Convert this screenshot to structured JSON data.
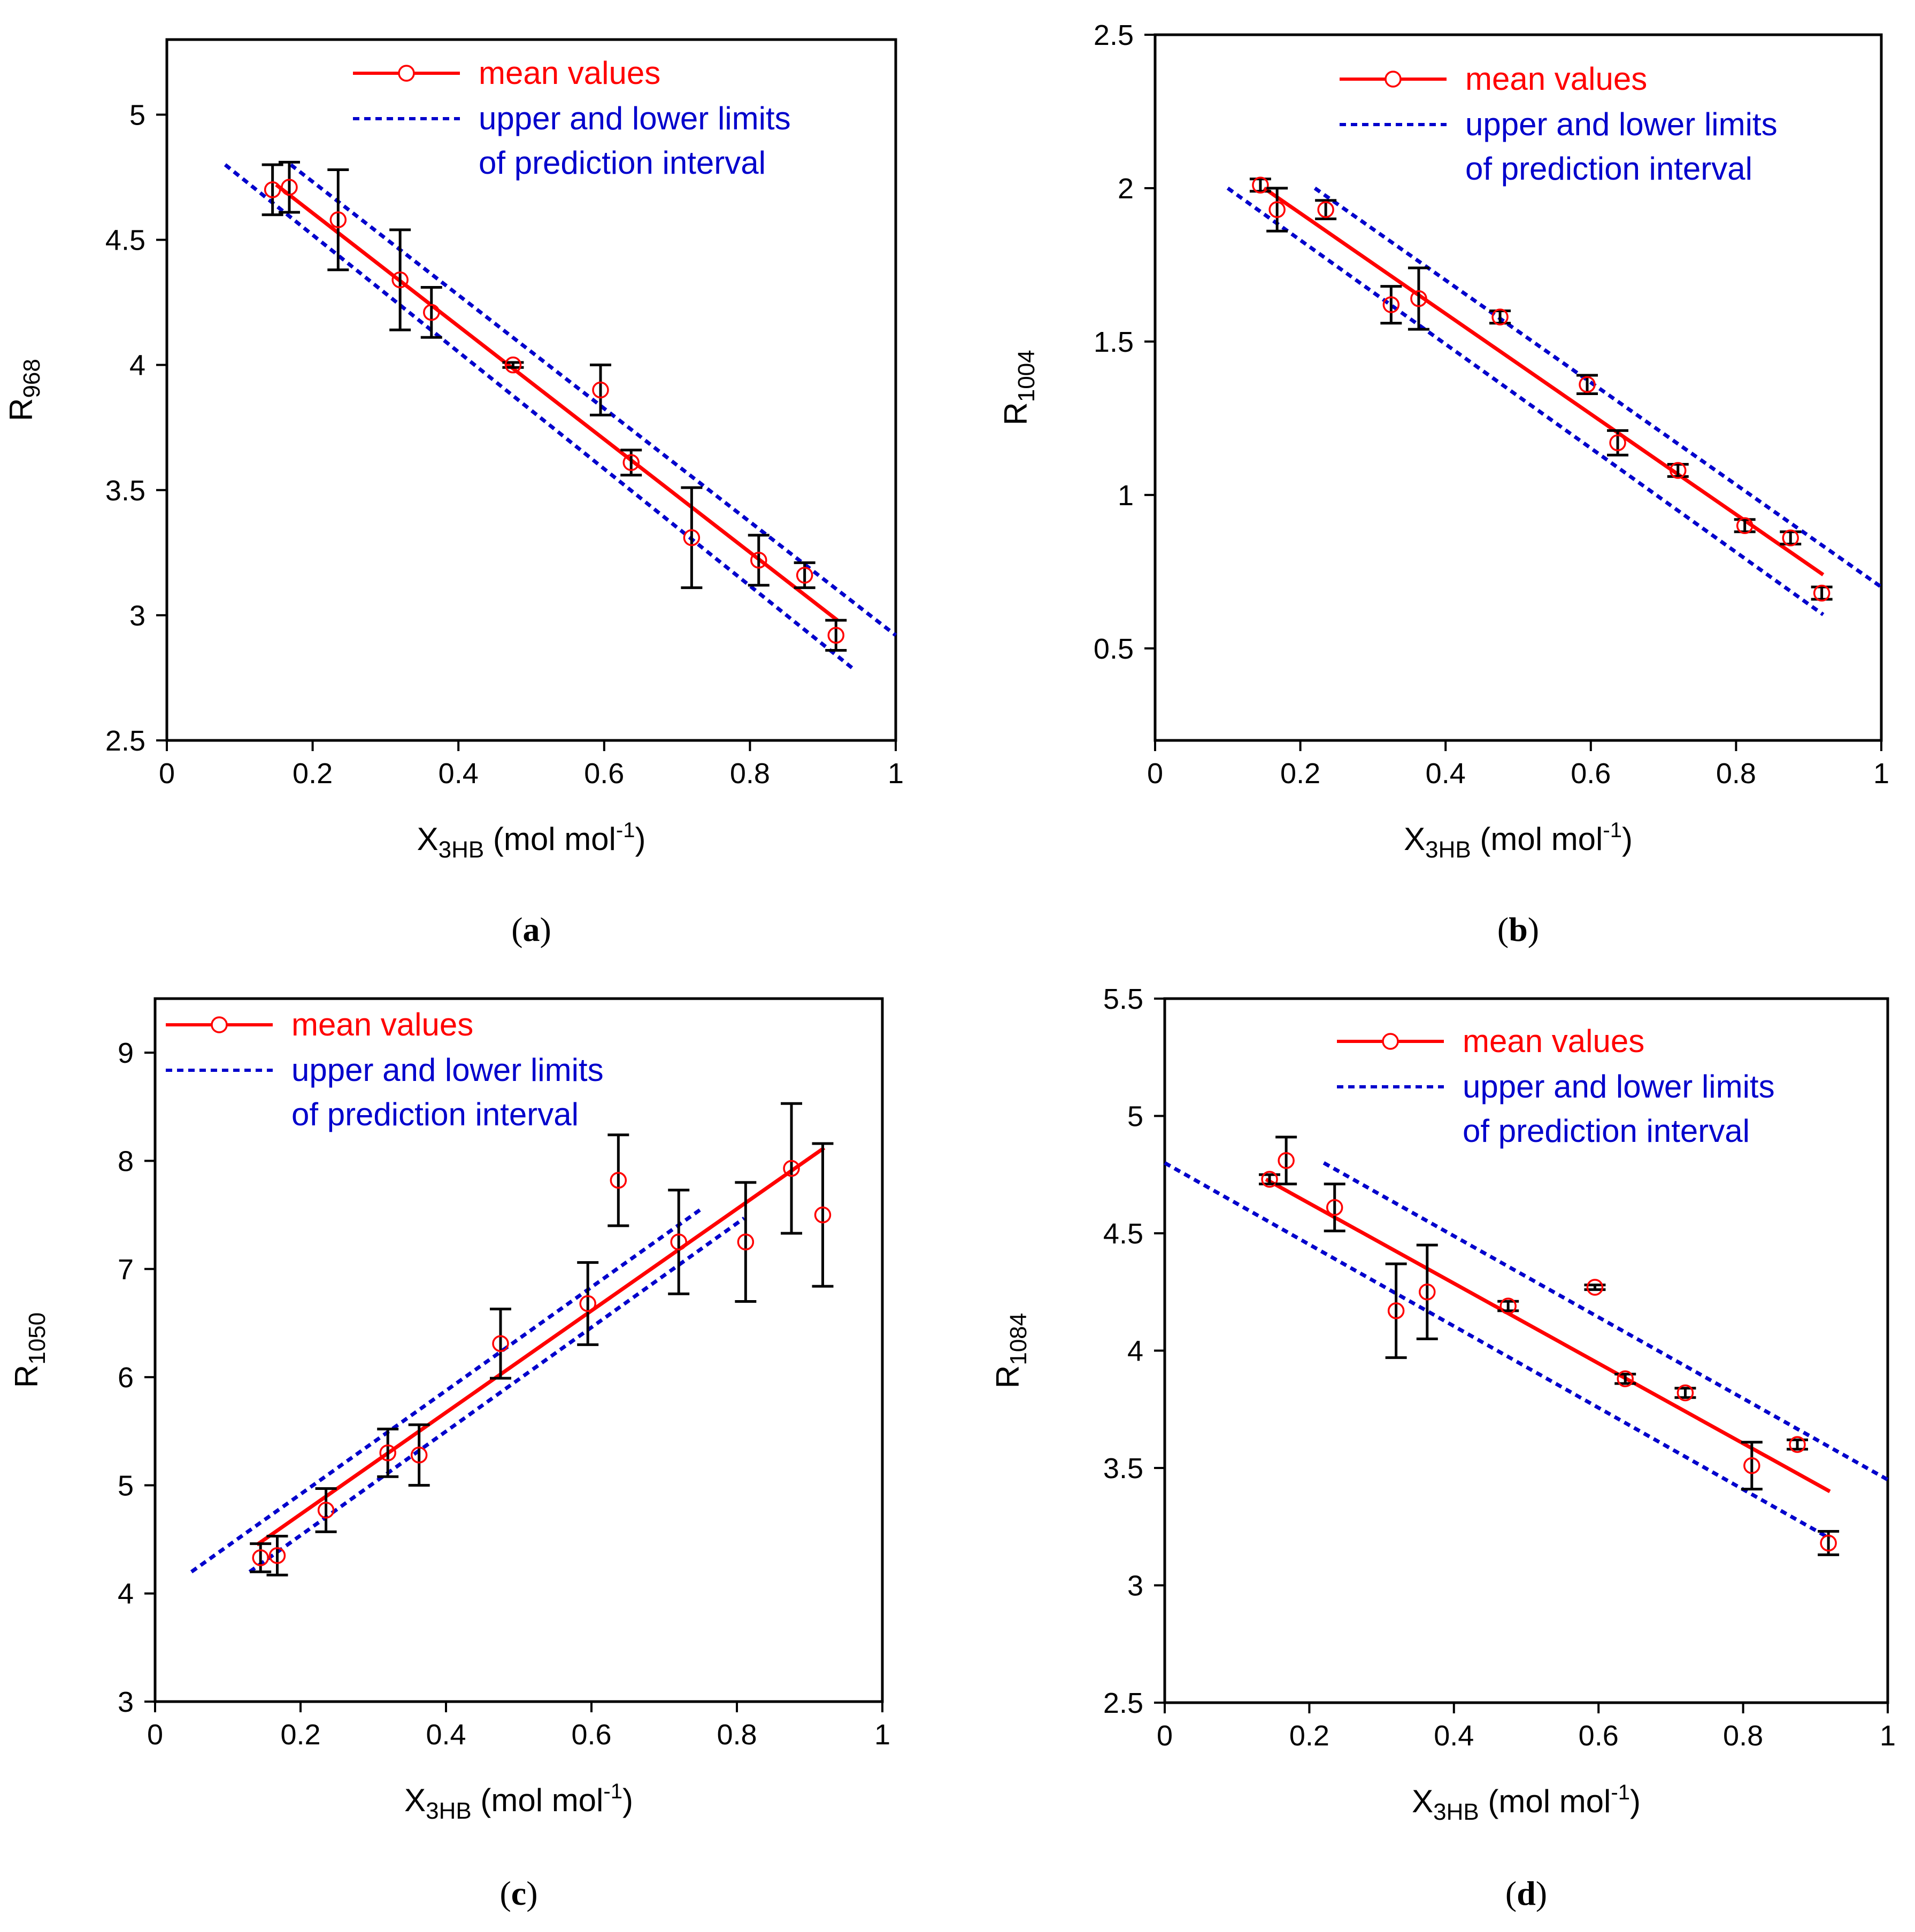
{
  "legend": {
    "mean": "mean values",
    "limits_line1": "upper and lower limits",
    "limits_line2": "of prediction interval"
  },
  "colors": {
    "mean": "#ff0000",
    "limits": "#0000cc",
    "errorbar": "#000000",
    "axes": "#000000"
  },
  "chart_data": [
    {
      "id": "a",
      "type": "scatter",
      "caption": "a",
      "title": "",
      "xlabel_main": "X",
      "xlabel_sub": "3HB",
      "xlabel_unit": " (mol mol",
      "xlabel_sup": "-1",
      "xlabel_close": ")",
      "ylabel_main": "R",
      "ylabel_sub": "968",
      "xlim": [
        0,
        1
      ],
      "ylim": [
        2.5,
        5.3
      ],
      "xticks": [
        0,
        0.2,
        0.4,
        0.6,
        0.8,
        1
      ],
      "xtick_labels": [
        "0",
        "0.2",
        "0.4",
        "0.6",
        "0.8",
        "1"
      ],
      "yticks": [
        2.5,
        3,
        3.5,
        4,
        4.5,
        5
      ],
      "ytick_labels": [
        "2.5",
        "3",
        "3.5",
        "4",
        "4.5",
        "5"
      ],
      "x": [
        0.145,
        0.168,
        0.235,
        0.32,
        0.363,
        0.475,
        0.595,
        0.637,
        0.72,
        0.812,
        0.875,
        0.918
      ],
      "y": [
        4.7,
        4.71,
        4.58,
        4.34,
        4.21,
        4.0,
        3.9,
        3.61,
        3.31,
        3.22,
        3.16,
        2.92
      ],
      "err": [
        0.1,
        0.1,
        0.2,
        0.2,
        0.1,
        0.01,
        0.1,
        0.05,
        0.2,
        0.1,
        0.05,
        0.06
      ],
      "fit": [
        [
          0.15,
          4.72
        ],
        [
          0.92,
          2.98
        ]
      ],
      "upper": [
        [
          0.17,
          4.8
        ],
        [
          1.0,
          2.92
        ]
      ],
      "lower": [
        [
          0.08,
          4.8
        ],
        [
          0.94,
          2.79
        ]
      ]
    },
    {
      "id": "b",
      "type": "scatter",
      "caption": "b",
      "title": "",
      "xlabel_main": "X",
      "xlabel_sub": "3HB",
      "xlabel_unit": " (mol mol",
      "xlabel_sup": "-1",
      "xlabel_close": ")",
      "ylabel_main": "R",
      "ylabel_sub": "1004",
      "xlim": [
        0,
        1
      ],
      "ylim": [
        0.2,
        2.5
      ],
      "xticks": [
        0,
        0.2,
        0.4,
        0.6,
        0.8,
        1
      ],
      "xtick_labels": [
        "0",
        "0.2",
        "0.4",
        "0.6",
        "0.8",
        "1"
      ],
      "yticks": [
        0.5,
        1,
        1.5,
        2,
        2.5
      ],
      "ytick_labels": [
        "0.5",
        "1",
        "1.5",
        "2",
        "2.5"
      ],
      "x": [
        0.145,
        0.168,
        0.235,
        0.325,
        0.363,
        0.475,
        0.595,
        0.637,
        0.72,
        0.812,
        0.875,
        0.918
      ],
      "y": [
        2.01,
        1.93,
        1.93,
        1.62,
        1.64,
        1.58,
        1.36,
        1.17,
        1.08,
        0.9,
        0.86,
        0.68
      ],
      "err": [
        0.02,
        0.07,
        0.03,
        0.06,
        0.1,
        0.02,
        0.03,
        0.04,
        0.02,
        0.02,
        0.02,
        0.02
      ],
      "fit": [
        [
          0.15,
          2.0
        ],
        [
          0.92,
          0.74
        ]
      ],
      "upper": [
        [
          0.22,
          2.0
        ],
        [
          1.0,
          0.7
        ]
      ],
      "lower": [
        [
          0.1,
          2.0
        ],
        [
          0.92,
          0.61
        ]
      ]
    },
    {
      "id": "c",
      "type": "scatter",
      "caption": "c",
      "title": "",
      "xlabel_main": "X",
      "xlabel_sub": "3HB",
      "xlabel_unit": " (mol mol",
      "xlabel_sup": "-1",
      "xlabel_close": ")",
      "ylabel_main": "R",
      "ylabel_sub": "1050",
      "xlim": [
        0,
        1
      ],
      "ylim": [
        3,
        9.5
      ],
      "xticks": [
        0,
        0.2,
        0.4,
        0.6,
        0.8,
        1
      ],
      "xtick_labels": [
        "0",
        "0.2",
        "0.4",
        "0.6",
        "0.8",
        "1"
      ],
      "yticks": [
        3,
        4,
        5,
        6,
        7,
        8,
        9
      ],
      "ytick_labels": [
        "3",
        "4",
        "5",
        "6",
        "7",
        "8",
        "9"
      ],
      "x": [
        0.145,
        0.168,
        0.235,
        0.32,
        0.363,
        0.475,
        0.595,
        0.637,
        0.72,
        0.812,
        0.875,
        0.918
      ],
      "y": [
        4.33,
        4.35,
        4.77,
        5.3,
        5.28,
        6.31,
        6.68,
        7.82,
        7.25,
        7.25,
        7.93,
        7.5
      ],
      "err": [
        0.13,
        0.18,
        0.2,
        0.22,
        0.28,
        0.32,
        0.38,
        0.42,
        0.48,
        0.55,
        0.6,
        0.66
      ],
      "fit": [
        [
          0.14,
          4.45
        ],
        [
          0.92,
          8.12
        ]
      ],
      "upper": [
        [
          0.05,
          4.2
        ],
        [
          0.75,
          7.55
        ]
      ],
      "lower": [
        [
          0.13,
          4.2
        ],
        [
          0.81,
          7.47
        ]
      ]
    },
    {
      "id": "d",
      "type": "scatter",
      "caption": "d",
      "title": "",
      "xlabel_main": "X",
      "xlabel_sub": "3HB",
      "xlabel_unit": " (mol mol",
      "xlabel_sup": "-1",
      "xlabel_close": ")",
      "ylabel_main": "R",
      "ylabel_sub": "1084",
      "xlim": [
        0,
        1
      ],
      "ylim": [
        2.5,
        5.5
      ],
      "xticks": [
        0,
        0.2,
        0.4,
        0.6,
        0.8,
        1
      ],
      "xtick_labels": [
        "0",
        "0.2",
        "0.4",
        "0.6",
        "0.8",
        "1"
      ],
      "yticks": [
        2.5,
        3,
        3.5,
        4,
        4.5,
        5,
        5.5
      ],
      "ytick_labels": [
        "2.5",
        "3",
        "3.5",
        "4",
        "4.5",
        "5",
        "5.5"
      ],
      "x": [
        0.145,
        0.168,
        0.235,
        0.32,
        0.363,
        0.475,
        0.595,
        0.637,
        0.72,
        0.812,
        0.875,
        0.918
      ],
      "y": [
        4.73,
        4.81,
        4.61,
        4.17,
        4.25,
        4.19,
        4.27,
        3.88,
        3.82,
        3.51,
        3.6,
        3.18
      ],
      "err": [
        0.02,
        0.1,
        0.1,
        0.2,
        0.2,
        0.02,
        0.01,
        0.02,
        0.02,
        0.1,
        0.02,
        0.05
      ],
      "fit": [
        [
          0.14,
          4.73
        ],
        [
          0.92,
          3.4
        ]
      ],
      "upper": [
        [
          0.22,
          4.8
        ],
        [
          1.0,
          3.45
        ]
      ],
      "lower": [
        [
          0.0,
          4.8
        ],
        [
          0.92,
          3.2
        ]
      ]
    }
  ]
}
